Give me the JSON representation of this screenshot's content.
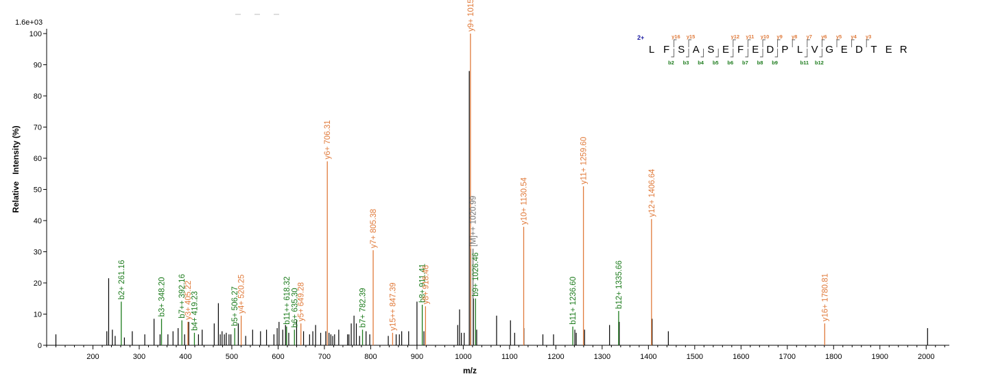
{
  "chart_data": {
    "type": "bar",
    "title": "",
    "intensity_max_label": "1.6e+03",
    "xlabel": "m/z",
    "ylabel": "Relative   Intensity (%)",
    "xlim": [
      100,
      2050
    ],
    "ylim": [
      0,
      100
    ],
    "x_ticks": [
      200,
      300,
      400,
      500,
      600,
      700,
      800,
      900,
      1000,
      1100,
      1200,
      1300,
      1400,
      1500,
      1600,
      1700,
      1800,
      1900,
      2000
    ],
    "x_minor_step": 20,
    "y_ticks": [
      0,
      10,
      20,
      30,
      40,
      50,
      60,
      70,
      80,
      90,
      100
    ],
    "grid": false,
    "colors": {
      "b_ion": "#1a7a1a",
      "y_ion": "#e07a3a",
      "precursor": "#707070",
      "other": "#000000",
      "charge": "#1a1aa0"
    },
    "annotated_peaks": [
      {
        "mz": 261.16,
        "intensity": 14,
        "label": "b2+ 261.16",
        "ion": "b"
      },
      {
        "mz": 348.2,
        "intensity": 8.5,
        "label": "b3+ 348.20",
        "ion": "b"
      },
      {
        "mz": 392.16,
        "intensity": 8,
        "label": "b7++ 392.16",
        "ion": "b"
      },
      {
        "mz": 405.22,
        "intensity": 7.5,
        "label": "y3+ 405.22",
        "ion": "y"
      },
      {
        "mz": 419.23,
        "intensity": 4,
        "label": "b4+ 419.23",
        "ion": "b"
      },
      {
        "mz": 506.27,
        "intensity": 5.5,
        "label": "b5+ 506.27",
        "ion": "b"
      },
      {
        "mz": 520.25,
        "intensity": 9.5,
        "label": "y4+ 520.25",
        "ion": "y"
      },
      {
        "mz": 618.32,
        "intensity": 6,
        "label": "b11++ 618.32",
        "ion": "b"
      },
      {
        "mz": 635.3,
        "intensity": 5,
        "label": "b6+ 635.30",
        "ion": "b"
      },
      {
        "mz": 649.28,
        "intensity": 7,
        "label": "y5+ 649.28",
        "ion": "y"
      },
      {
        "mz": 706.31,
        "intensity": 59,
        "label": "y6+ 706.31",
        "ion": "y"
      },
      {
        "mz": 782.39,
        "intensity": 5,
        "label": "b7+ 782.39",
        "ion": "b"
      },
      {
        "mz": 805.38,
        "intensity": 30.5,
        "label": "y7+ 805.38",
        "ion": "y"
      },
      {
        "mz": 847.39,
        "intensity": 4,
        "label": "y15++ 847.39",
        "ion": "y"
      },
      {
        "mz": 911.41,
        "intensity": 13,
        "label": "b8+ 911.41",
        "ion": "b"
      },
      {
        "mz": 918.46,
        "intensity": 12.5,
        "label": "y8+ 918.46",
        "ion": "y"
      },
      {
        "mz": 1015.53,
        "intensity": 100,
        "label": "y9+ 1015.53",
        "ion": "y"
      },
      {
        "mz": 1020.99,
        "intensity": 31,
        "label": "[M]++ 1020.99",
        "ion": "precursor"
      },
      {
        "mz": 1026.46,
        "intensity": 15,
        "label": "b9+ 1026.46",
        "ion": "b"
      },
      {
        "mz": 1130.54,
        "intensity": 38,
        "label": "y10+ 1130.54",
        "ion": "y"
      },
      {
        "mz": 1236.6,
        "intensity": 6,
        "label": "b11+ 1236.60",
        "ion": "b"
      },
      {
        "mz": 1259.6,
        "intensity": 51,
        "label": "y11+ 1259.60",
        "ion": "y"
      },
      {
        "mz": 1335.66,
        "intensity": 11,
        "label": "b12+ 1335.66",
        "ion": "b"
      },
      {
        "mz": 1406.64,
        "intensity": 40.5,
        "label": "y12+ 1406.64",
        "ion": "y"
      },
      {
        "mz": 1780.81,
        "intensity": 7,
        "label": "y16+ 1780.81",
        "ion": "y"
      }
    ],
    "other_peaks": [
      [
        120,
        3.5
      ],
      [
        230,
        4.5
      ],
      [
        234,
        21.5
      ],
      [
        242,
        5
      ],
      [
        248,
        3
      ],
      [
        268,
        2.5
      ],
      [
        285,
        4.5
      ],
      [
        312,
        3.5
      ],
      [
        332,
        8.5
      ],
      [
        345,
        3.5
      ],
      [
        362,
        3.5
      ],
      [
        373,
        4.5
      ],
      [
        384,
        5.5
      ],
      [
        398,
        3.5
      ],
      [
        407,
        7.5
      ],
      [
        428,
        3.5
      ],
      [
        436,
        5
      ],
      [
        462,
        7
      ],
      [
        471,
        13.5
      ],
      [
        475,
        3.5
      ],
      [
        479,
        4.5
      ],
      [
        484,
        3.5
      ],
      [
        488,
        4
      ],
      [
        494,
        3.5
      ],
      [
        498,
        3.5
      ],
      [
        514,
        7
      ],
      [
        530,
        3
      ],
      [
        545,
        5
      ],
      [
        562,
        4.5
      ],
      [
        575,
        5
      ],
      [
        591,
        3.5
      ],
      [
        598,
        5.5
      ],
      [
        602,
        7.5
      ],
      [
        610,
        5
      ],
      [
        616,
        6.5
      ],
      [
        623,
        4
      ],
      [
        640,
        8
      ],
      [
        655,
        4.5
      ],
      [
        668,
        3.5
      ],
      [
        675,
        4.5
      ],
      [
        681,
        6.5
      ],
      [
        692,
        4
      ],
      [
        703,
        4.5
      ],
      [
        710,
        4
      ],
      [
        714,
        3.5
      ],
      [
        718,
        3
      ],
      [
        722,
        3.5
      ],
      [
        731,
        5
      ],
      [
        750,
        3.5
      ],
      [
        753,
        3.5
      ],
      [
        758,
        7
      ],
      [
        764,
        9.5
      ],
      [
        769,
        7
      ],
      [
        776,
        3
      ],
      [
        790,
        4.5
      ],
      [
        798,
        3.5
      ],
      [
        838,
        3
      ],
      [
        855,
        3.5
      ],
      [
        862,
        3.5
      ],
      [
        867,
        4.5
      ],
      [
        882,
        4.5
      ],
      [
        900,
        14
      ],
      [
        915,
        4.5
      ],
      [
        988,
        6.5
      ],
      [
        992,
        11.5
      ],
      [
        996,
        4
      ],
      [
        1002,
        4
      ],
      [
        1013,
        88
      ],
      [
        1016,
        31
      ],
      [
        1022,
        15
      ],
      [
        1029,
        5
      ],
      [
        1072,
        9.5
      ],
      [
        1102,
        8
      ],
      [
        1111,
        4
      ],
      [
        1131,
        5.5
      ],
      [
        1172,
        3.5
      ],
      [
        1195,
        3.5
      ],
      [
        1241,
        5
      ],
      [
        1244,
        4
      ],
      [
        1262,
        5
      ],
      [
        1316,
        6.5
      ],
      [
        1337,
        7.5
      ],
      [
        1408,
        8.5
      ],
      [
        1443,
        4.5
      ],
      [
        2003,
        5.5
      ]
    ],
    "sequence": {
      "charge": "2+",
      "letters": [
        "L",
        "F",
        "S",
        "A",
        "S",
        "E",
        "F",
        "E",
        "D",
        "P",
        "L",
        "V",
        "G",
        "E",
        "D",
        "T",
        "E",
        "R"
      ],
      "y_ions": [
        {
          "after": 2,
          "label": "y16"
        },
        {
          "after": 3,
          "label": "y15"
        },
        {
          "after": 6,
          "label": "y12"
        },
        {
          "after": 7,
          "label": "y11"
        },
        {
          "after": 8,
          "label": "y10"
        },
        {
          "after": 9,
          "label": "y9"
        },
        {
          "after": 10,
          "label": "y8"
        },
        {
          "after": 11,
          "label": "y7"
        },
        {
          "after": 12,
          "label": "y6"
        },
        {
          "after": 13,
          "label": "y5"
        },
        {
          "after": 14,
          "label": "y4"
        },
        {
          "after": 15,
          "label": "y3"
        }
      ],
      "b_ions": [
        {
          "after": 2,
          "label": "b2"
        },
        {
          "after": 3,
          "label": "b3"
        },
        {
          "after": 4,
          "label": "b4"
        },
        {
          "after": 5,
          "label": "b5"
        },
        {
          "after": 6,
          "label": "b6"
        },
        {
          "after": 7,
          "label": "b7"
        },
        {
          "after": 8,
          "label": "b8"
        },
        {
          "after": 9,
          "label": "b9"
        },
        {
          "after": 11,
          "label": "b11"
        },
        {
          "after": 12,
          "label": "b12"
        }
      ]
    }
  }
}
